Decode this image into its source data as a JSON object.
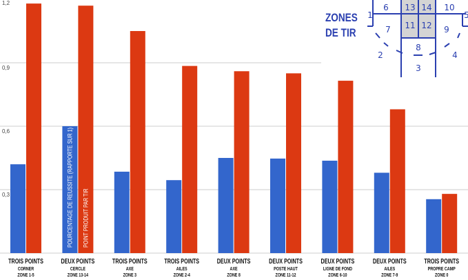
{
  "chart_data": {
    "type": "bar",
    "ylim": [
      0,
      1.2
    ],
    "yticks": [
      "0,3",
      "0,6",
      "0,9",
      "1,2"
    ],
    "grid": true,
    "categories": [
      {
        "line1": "TROIS POINTS",
        "line2": "CORNER",
        "line3": "ZONE 1-5"
      },
      {
        "line1": "DEUX POINTS",
        "line2": "CERCLE",
        "line3": "ZONE 13-14"
      },
      {
        "line1": "TROIS POINTS",
        "line2": "AXE",
        "line3": "ZONE 3"
      },
      {
        "line1": "TROIS POINTS",
        "line2": "AILES",
        "line3": "ZONE 2-4"
      },
      {
        "line1": "DEUX POINTS",
        "line2": "AXE",
        "line3": "ZONE 8"
      },
      {
        "line1": "DEUX POINTS",
        "line2": "POSTE HAUT",
        "line3": "ZONE 11-12"
      },
      {
        "line1": "DEUX POINTS",
        "line2": "LIGNE DE FOND",
        "line3": "ZONE 6-10"
      },
      {
        "line1": "DEUX POINTS",
        "line2": "AILES",
        "line3": "ZONE 7-9"
      },
      {
        "line1": "TROIS POINTS",
        "line2": "PROPRE CAMP",
        "line3": "ZONE 0"
      }
    ],
    "series": [
      {
        "name": "POURCENTAGE DE REUSSITE (RAPPORTE SUR 1)",
        "color": "#3366cc",
        "values": [
          0.42,
          0.6,
          0.385,
          0.345,
          0.45,
          0.447,
          0.437,
          0.38,
          0.255
        ]
      },
      {
        "name": "POINT PRODUIT PAR TIR",
        "color": "#dc3912",
        "values": [
          1.18,
          1.17,
          1.05,
          0.885,
          0.86,
          0.85,
          0.815,
          0.68,
          0.28
        ]
      }
    ],
    "legend": "inside-bars of second group"
  },
  "zones_diagram": {
    "title_line1": "ZONES",
    "title_line2": "DE TIR",
    "color": "#2a3fb0",
    "shaded_color": "#d4d4d4",
    "labels": [
      "1",
      "2",
      "3",
      "4",
      "5",
      "6",
      "7",
      "8",
      "9",
      "10",
      "11",
      "12",
      "13",
      "14"
    ]
  }
}
